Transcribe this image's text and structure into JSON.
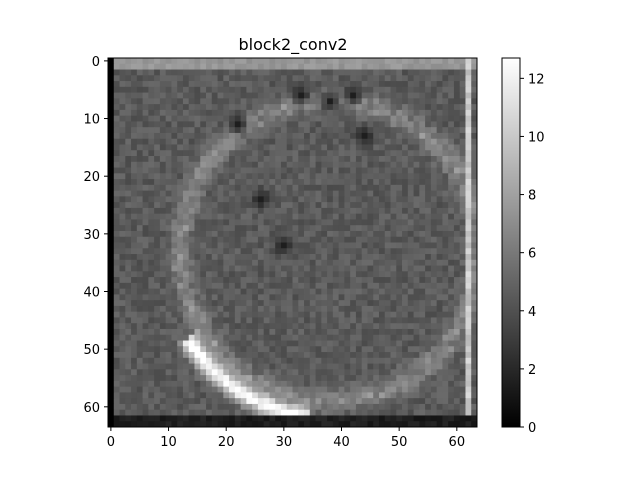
{
  "chart_data": {
    "type": "heatmap",
    "title": "block2_conv2",
    "colormap": "gray",
    "grid": false,
    "image_size": [
      64,
      64
    ],
    "xlim": [
      -0.5,
      63.5
    ],
    "ylim": [
      63.5,
      -0.5
    ],
    "x_ticks": [
      0,
      10,
      20,
      30,
      40,
      50,
      60
    ],
    "y_ticks": [
      0,
      10,
      20,
      30,
      40,
      50,
      60
    ],
    "colorbar": {
      "range": [
        0,
        12.7
      ],
      "ticks": [
        0,
        2,
        4,
        6,
        8,
        10,
        12
      ],
      "position": "right"
    },
    "description_of_values": {
      "background_level": 4.5,
      "left_edge_column_level": 0,
      "top_edge_row_level": 7.5,
      "bright_arc_peak": 12.5,
      "circular_ring_level": 7,
      "dark_spots_level": 1.5
    }
  }
}
